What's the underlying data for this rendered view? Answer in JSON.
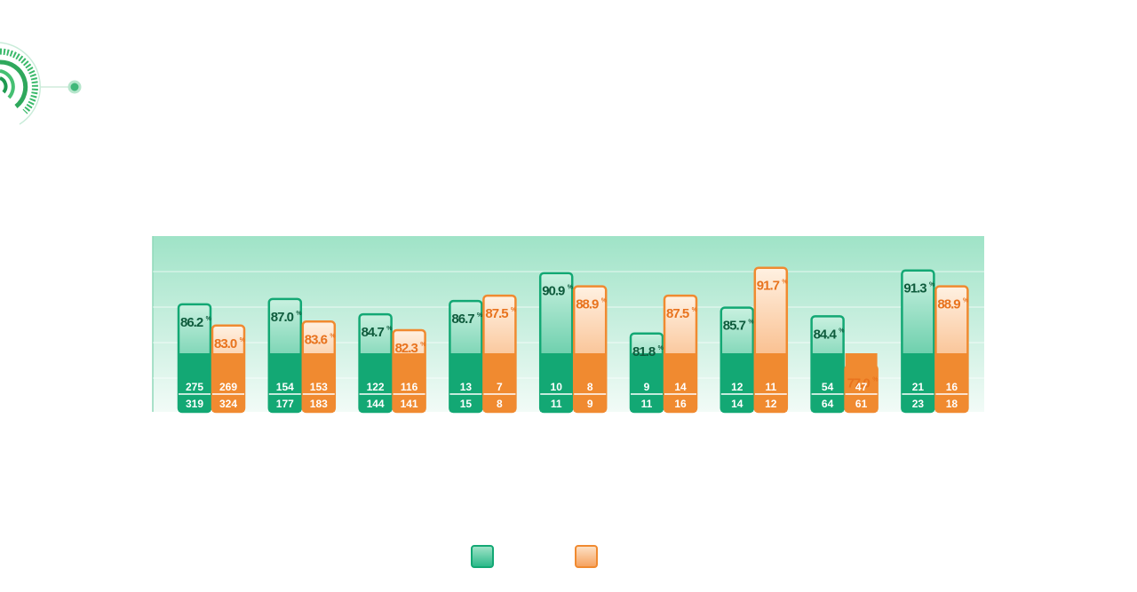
{
  "colors": {
    "green": "#13a874",
    "green_text": "#0e5b3c",
    "orange": "#f08a30",
    "orange_text": "#e8731e",
    "panel": "#bfeedd"
  },
  "legend": [
    {
      "color": "green",
      "icon": "green-swatch-icon"
    },
    {
      "color": "orange",
      "icon": "orange-swatch-icon"
    }
  ],
  "chart_data": {
    "type": "bar",
    "ylim": [
      70,
      95
    ],
    "grid": true,
    "legend_position": "bottom",
    "groups": [
      {
        "green": {
          "pct": 86.2,
          "num": 275,
          "den": 319
        },
        "orange": {
          "pct": 83.0,
          "num": 269,
          "den": 324
        }
      },
      {
        "green": {
          "pct": 87.0,
          "num": 154,
          "den": 177
        },
        "orange": {
          "pct": 83.6,
          "num": 153,
          "den": 183
        }
      },
      {
        "green": {
          "pct": 84.7,
          "num": 122,
          "den": 144
        },
        "orange": {
          "pct": 82.3,
          "num": 116,
          "den": 141
        }
      },
      {
        "green": {
          "pct": 86.7,
          "num": 13,
          "den": 15
        },
        "orange": {
          "pct": 87.5,
          "num": 7,
          "den": 8
        }
      },
      {
        "green": {
          "pct": 90.9,
          "num": 10,
          "den": 11
        },
        "orange": {
          "pct": 88.9,
          "num": 8,
          "den": 9
        }
      },
      {
        "green": {
          "pct": 81.8,
          "num": 9,
          "den": 11
        },
        "orange": {
          "pct": 87.5,
          "num": 14,
          "den": 16
        }
      },
      {
        "green": {
          "pct": 85.7,
          "num": 12,
          "den": 14
        },
        "orange": {
          "pct": 91.7,
          "num": 11,
          "den": 12
        }
      },
      {
        "green": {
          "pct": 84.4,
          "num": 54,
          "den": 64
        },
        "orange": {
          "pct": 77.0,
          "num": 47,
          "den": 61
        }
      },
      {
        "green": {
          "pct": 91.3,
          "num": 21,
          "den": 23
        },
        "orange": {
          "pct": 88.9,
          "num": 16,
          "den": 18
        }
      }
    ]
  }
}
